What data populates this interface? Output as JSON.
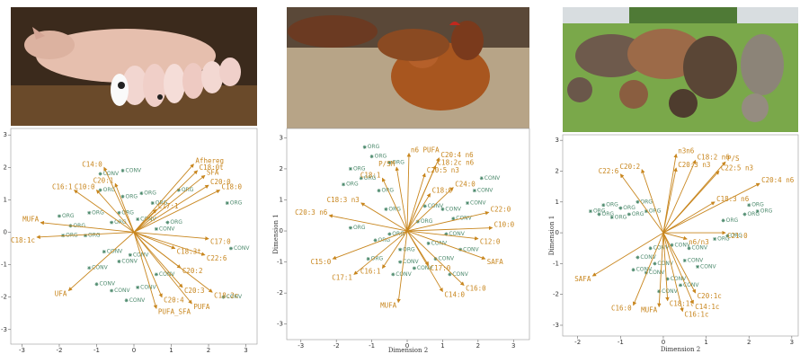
{
  "chart_data": [
    {
      "type": "biplot",
      "xlabel": null,
      "ylabel": null,
      "xlim": [
        -3.3,
        3.3
      ],
      "ylim": [
        -3.45,
        3.2
      ],
      "xticks": [
        -3,
        -2,
        -1,
        0,
        1,
        2,
        3
      ],
      "yticks": [
        -3,
        -2,
        -1,
        0,
        1,
        2,
        3
      ],
      "vector_color": "#c8861e",
      "vectors": [
        {
          "label": "Afhereg",
          "x": 1.6,
          "y": 2.1
        },
        {
          "label": "C18:0t",
          "x": 1.7,
          "y": 1.9
        },
        {
          "label": "SFA",
          "x": 1.9,
          "y": 1.75
        },
        {
          "label": "C20:0",
          "x": 2.0,
          "y": 1.45
        },
        {
          "label": "C18:0",
          "x": 2.3,
          "y": 1.3
        },
        {
          "label": "C17:0",
          "x": 2.0,
          "y": -0.2
        },
        {
          "label": "C18:3t",
          "x": 1.1,
          "y": -0.5
        },
        {
          "label": "C22:6",
          "x": 1.9,
          "y": -0.7
        },
        {
          "label": "C20:2",
          "x": 1.25,
          "y": -1.1
        },
        {
          "label": "C20:3",
          "x": 1.3,
          "y": -1.7
        },
        {
          "label": "C18:2c",
          "x": 2.1,
          "y": -1.85
        },
        {
          "label": "C20:4",
          "x": 0.75,
          "y": -2.0
        },
        {
          "label": "PUFA",
          "x": 1.55,
          "y": -2.2
        },
        {
          "label": "PUFA_SFA",
          "x": 0.6,
          "y": -2.35
        },
        {
          "label": "UFA",
          "x": -1.75,
          "y": -1.8
        },
        {
          "label": "MUFA",
          "x": -2.5,
          "y": 0.3
        },
        {
          "label": "C18:1c",
          "x": -2.6,
          "y": -0.15
        },
        {
          "label": "C16:1",
          "x": -1.6,
          "y": 1.3
        },
        {
          "label": "C10:0",
          "x": -1.0,
          "y": 1.3
        },
        {
          "label": "C14:0",
          "x": -0.8,
          "y": 2.0
        },
        {
          "label": "C20:1",
          "x": -0.5,
          "y": 1.5
        },
        {
          "label": "C17:1",
          "x": 0.6,
          "y": 0.7
        }
      ],
      "series": [
        {
          "name": "ORG",
          "color": "#4d8a6d",
          "x": [
            -0.9,
            -0.3,
            0.2,
            0.5,
            -1.2,
            -2.0,
            -1.7,
            -0.6,
            0.9,
            2.5,
            -1.3,
            -0.4,
            -1.9,
            1.2
          ],
          "values": [
            1.3,
            1.1,
            1.2,
            0.9,
            0.6,
            0.5,
            0.2,
            0.3,
            0.3,
            0.9,
            -0.1,
            0.6,
            -0.1,
            1.3
          ]
        },
        {
          "name": "CONV",
          "color": "#4d8a6d",
          "x": [
            -0.3,
            -0.9,
            0.1,
            0.6,
            2.6,
            -1.2,
            -0.4,
            -0.1,
            0.6,
            -0.6,
            -0.2,
            2.4,
            -1.0,
            0.1,
            -0.8
          ],
          "values": [
            1.9,
            1.8,
            0.4,
            0.1,
            -0.5,
            -1.1,
            -0.9,
            -0.7,
            -1.3,
            -1.8,
            -2.1,
            -2.0,
            -1.6,
            -1.7,
            -0.6
          ]
        }
      ]
    },
    {
      "type": "biplot",
      "xlabel": "Dimension 2",
      "ylabel": "Dimension 1",
      "xlim": [
        -3.4,
        3.45
      ],
      "ylim": [
        -3.5,
        3.3
      ],
      "xticks": [
        -3,
        -2,
        -1,
        0,
        1,
        2,
        3
      ],
      "yticks": [
        -3,
        -2,
        -1,
        0,
        1,
        2,
        3
      ],
      "vector_color": "#c8861e",
      "vectors": [
        {
          "label": "n6 PUFA",
          "x": 0.05,
          "y": 2.5
        },
        {
          "label": "C20:4 n6",
          "x": 0.9,
          "y": 2.35
        },
        {
          "label": "C18:2c n6",
          "x": 0.8,
          "y": 2.1
        },
        {
          "label": "P/SM",
          "x": -0.3,
          "y": 2.05
        },
        {
          "label": "C20:5 n3",
          "x": 0.5,
          "y": 1.85
        },
        {
          "label": "C18:1",
          "x": -0.7,
          "y": 1.7
        },
        {
          "label": "C24:0",
          "x": 1.3,
          "y": 1.4
        },
        {
          "label": "C18:0",
          "x": 0.65,
          "y": 1.2
        },
        {
          "label": "C22:0",
          "x": 2.3,
          "y": 0.6
        },
        {
          "label": "C18:3 n3",
          "x": -1.3,
          "y": 0.9
        },
        {
          "label": "C20:3 n6",
          "x": -2.2,
          "y": 0.5
        },
        {
          "label": "C10:0",
          "x": 2.4,
          "y": 0.1
        },
        {
          "label": "C12:0",
          "x": 2.0,
          "y": -0.25
        },
        {
          "label": "SAFA",
          "x": 2.2,
          "y": -0.9
        },
        {
          "label": "C15:0",
          "x": -2.1,
          "y": -0.9
        },
        {
          "label": "C17:0",
          "x": 0.6,
          "y": -1.1
        },
        {
          "label": "C16:1",
          "x": -0.7,
          "y": -1.2
        },
        {
          "label": "C17:1",
          "x": -1.5,
          "y": -1.4
        },
        {
          "label": "C16:0",
          "x": 1.6,
          "y": -1.75
        },
        {
          "label": "C14:0",
          "x": 1.0,
          "y": -1.95
        },
        {
          "label": "MUFA",
          "x": -0.25,
          "y": -2.3
        }
      ],
      "series": [
        {
          "name": "ORG",
          "color": "#4d8a6d",
          "x": [
            -1.2,
            -1.0,
            -0.5,
            -1.6,
            -1.3,
            -0.8,
            -1.8,
            -0.6,
            -0.9,
            -0.5,
            -1.6,
            -0.2,
            -1.1,
            0.3
          ],
          "values": [
            2.7,
            2.4,
            2.2,
            2.0,
            1.7,
            1.3,
            1.5,
            0.7,
            -0.3,
            -0.1,
            0.1,
            -0.6,
            -0.9,
            0.3
          ]
        },
        {
          "name": "CONV",
          "color": "#4d8a6d",
          "x": [
            1.9,
            2.1,
            1.7,
            1.3,
            1.1,
            0.6,
            1.5,
            0.8,
            0.2,
            1.2,
            -0.2,
            0.5,
            1.0,
            -0.4
          ],
          "values": [
            1.3,
            1.7,
            0.9,
            0.4,
            -0.1,
            -0.4,
            -0.6,
            -0.9,
            -1.2,
            -1.4,
            -1.0,
            0.8,
            0.7,
            -1.4
          ]
        }
      ]
    },
    {
      "type": "biplot",
      "xlabel": "Dimension 2",
      "ylabel": "Dimension 1",
      "xlim": [
        -2.35,
        3.15
      ],
      "ylim": [
        -3.35,
        3.18
      ],
      "xticks": [
        -2,
        -1,
        0,
        1,
        2,
        3
      ],
      "yticks": [
        -3,
        -2,
        -1,
        0,
        1,
        2,
        3
      ],
      "vector_color": "#c8861e",
      "vectors": [
        {
          "label": "n3n6",
          "x": 0.3,
          "y": 2.55
        },
        {
          "label": "C18:2 n6",
          "x": 0.75,
          "y": 2.35
        },
        {
          "label": "P/S",
          "x": 1.45,
          "y": 2.3
        },
        {
          "label": "C20:2",
          "x": -0.5,
          "y": 2.05
        },
        {
          "label": "C20:3 n3",
          "x": 0.3,
          "y": 2.1
        },
        {
          "label": "C22:5 n3",
          "x": 1.3,
          "y": 2.0
        },
        {
          "label": "C22:6",
          "x": -1.0,
          "y": 1.9
        },
        {
          "label": "C20:4 n6",
          "x": 2.25,
          "y": 1.6
        },
        {
          "label": "C18:3 n6",
          "x": 1.2,
          "y": 1.0
        },
        {
          "label": "C21:0",
          "x": 1.45,
          "y": 0.0
        },
        {
          "label": "n6/n3",
          "x": 0.55,
          "y": -0.2
        },
        {
          "label": "SAFA",
          "x": -1.65,
          "y": -1.4
        },
        {
          "label": "C20:1c",
          "x": 0.75,
          "y": -1.95
        },
        {
          "label": "C18:1t",
          "x": 0.1,
          "y": -2.2
        },
        {
          "label": "C16:0",
          "x": -0.7,
          "y": -2.35
        },
        {
          "label": "MUFA",
          "x": -0.1,
          "y": -2.4
        },
        {
          "label": "C14:1c",
          "x": 0.7,
          "y": -2.3
        },
        {
          "label": "C16:1c",
          "x": 0.45,
          "y": -2.55
        }
      ],
      "series": [
        {
          "name": "ORG",
          "color": "#4d8a6d",
          "x": [
            -1.7,
            -1.0,
            -1.4,
            -0.6,
            -0.8,
            -1.2,
            -0.4,
            -1.5,
            2.0,
            1.9,
            1.4,
            2.2,
            1.2,
            1.5
          ],
          "values": [
            0.7,
            0.8,
            0.9,
            1.0,
            0.6,
            0.5,
            0.7,
            0.6,
            0.9,
            0.6,
            0.4,
            0.7,
            -0.2,
            -0.1
          ]
        },
        {
          "name": "CONV",
          "color": "#4d8a6d",
          "x": [
            0.2,
            -0.3,
            -0.6,
            -0.2,
            0.5,
            -0.4,
            0.1,
            0.8,
            -0.7,
            0.4,
            -0.1,
            0.6
          ],
          "values": [
            -0.4,
            -0.5,
            -0.8,
            -1.0,
            -0.9,
            -1.3,
            -1.5,
            -1.1,
            -1.2,
            -1.7,
            -1.9,
            -0.5
          ]
        }
      ]
    }
  ]
}
